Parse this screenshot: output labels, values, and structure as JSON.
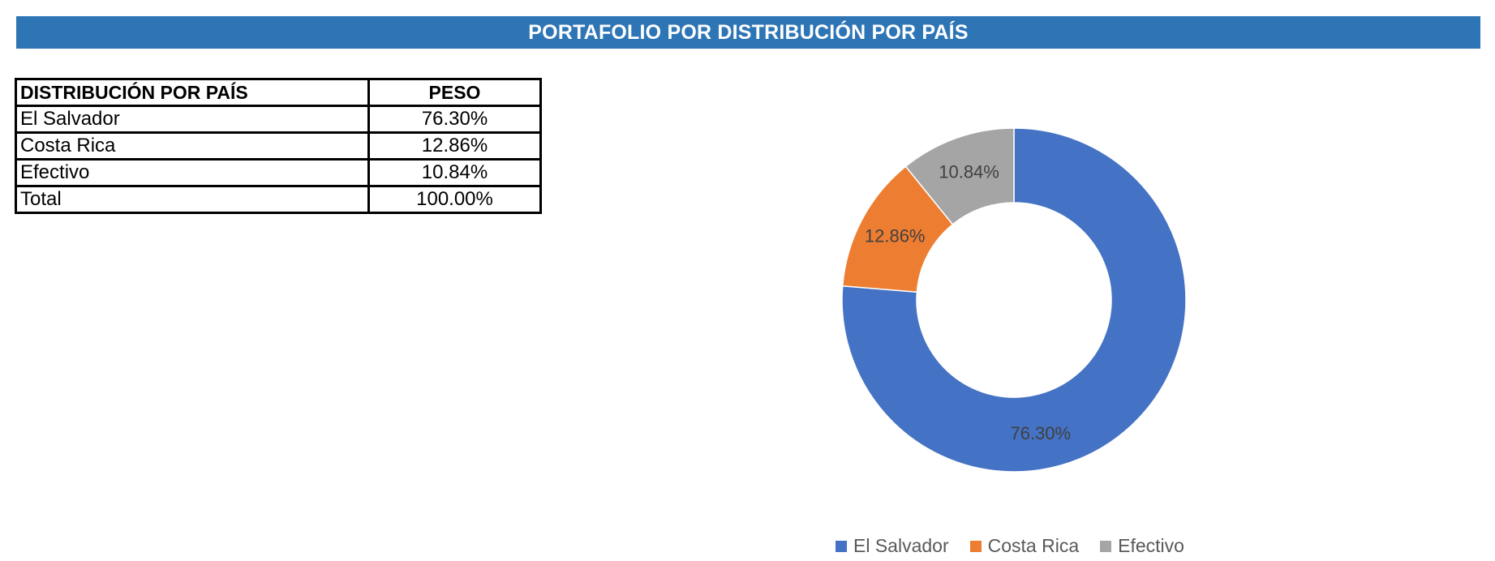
{
  "title": "PORTAFOLIO POR DISTRIBUCIÓN POR PAÍS",
  "table": {
    "headers": [
      "DISTRIBUCIÓN POR PAÍS",
      "PESO"
    ],
    "rows": [
      {
        "name": "El Salvador",
        "peso": "76.30%"
      },
      {
        "name": "Costa Rica",
        "peso": "12.86%"
      },
      {
        "name": "Efectivo",
        "peso": "10.84%"
      },
      {
        "name": "Total",
        "peso": "100.00%"
      }
    ]
  },
  "chart_data": {
    "type": "pie",
    "donut": true,
    "categories": [
      "El Salvador",
      "Costa Rica",
      "Efectivo"
    ],
    "values": [
      76.3,
      12.86,
      10.84
    ],
    "labels": [
      "76.30%",
      "12.86%",
      "10.84%"
    ],
    "colors": [
      "#4472C4",
      "#ED7D31",
      "#A5A5A5"
    ],
    "legend_position": "bottom",
    "title": ""
  },
  "colors": {
    "banner": "#2E75B6",
    "banner_text": "#FFFFFF"
  }
}
